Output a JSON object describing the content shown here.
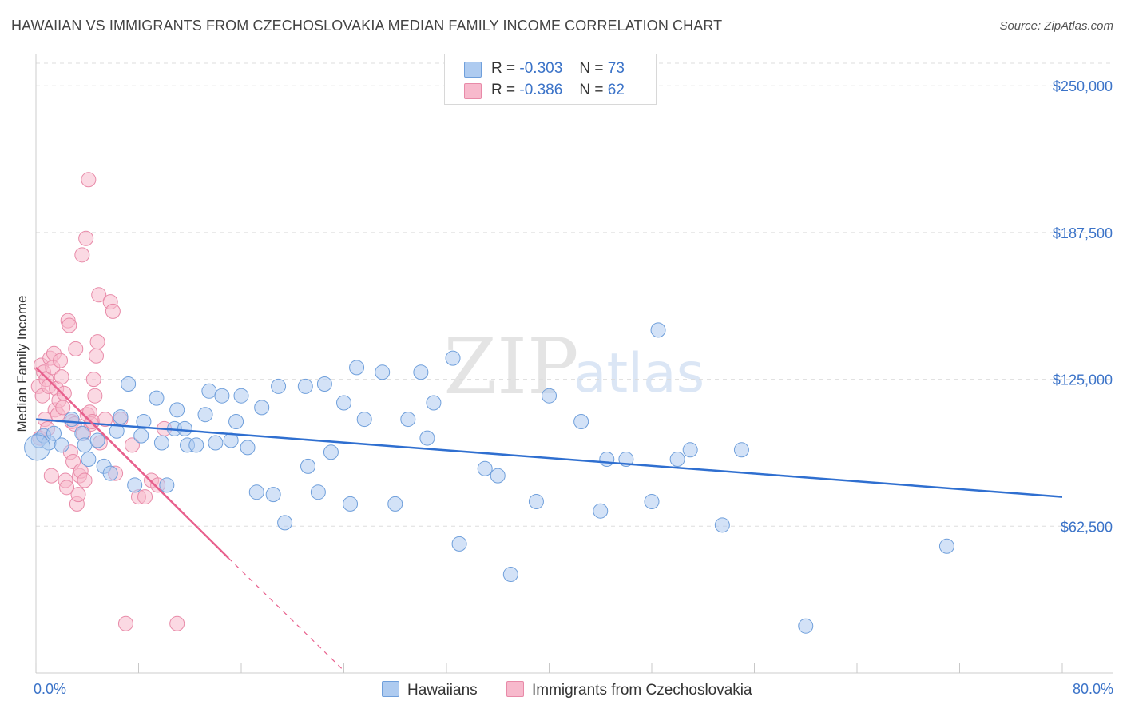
{
  "header": {
    "title": "HAWAIIAN VS IMMIGRANTS FROM CZECHOSLOVAKIA MEDIAN FAMILY INCOME CORRELATION CHART",
    "source": "Source: ZipAtlas.com"
  },
  "watermark": {
    "zip": "ZIP",
    "atlas": "atlas"
  },
  "legend_top": {
    "rows": [
      {
        "r_label": "R =",
        "r_value": "-0.303",
        "n_label": "N =",
        "n_value": "73"
      },
      {
        "r_label": "R =",
        "r_value": "-0.386",
        "n_label": "N =",
        "n_value": "62"
      }
    ]
  },
  "legend_bottom": {
    "series1": "Hawaiians",
    "series2": "Immigrants from Czechoslovakia"
  },
  "x_axis": {
    "min_label": "0.0%",
    "max_label": "80.0%"
  },
  "colors": {
    "blue_fill": "#aecbf0",
    "blue_stroke": "#6f9fdb",
    "blue_line": "#2f6fd0",
    "pink_fill": "#f7b9cc",
    "pink_stroke": "#e88aa8",
    "pink_line": "#e8608d",
    "axis_text": "#3b73c8",
    "grid": "#dddddd"
  },
  "chart_data": {
    "type": "scatter",
    "title": "HAWAIIAN VS IMMIGRANTS FROM CZECHOSLOVAKIA MEDIAN FAMILY INCOME CORRELATION CHART",
    "xlabel": "",
    "ylabel": "Median Family Income",
    "xlim": [
      0,
      80
    ],
    "ylim": [
      0,
      250000
    ],
    "y_ticks": [
      62500,
      125000,
      187500,
      250000
    ],
    "y_tick_labels": [
      "$62,500",
      "$125,000",
      "$187,500",
      "$250,000"
    ],
    "series": [
      {
        "name": "Hawaiians",
        "R": -0.303,
        "N": 73,
        "points": [
          [
            0.2,
            99000
          ],
          [
            0.6,
            101000
          ],
          [
            1.0,
            98000
          ],
          [
            1.4,
            102000
          ],
          [
            2.0,
            97000
          ],
          [
            2.8,
            108000
          ],
          [
            3.6,
            102000
          ],
          [
            3.8,
            97000
          ],
          [
            4.1,
            91000
          ],
          [
            4.8,
            99000
          ],
          [
            5.3,
            88000
          ],
          [
            5.8,
            85000
          ],
          [
            6.3,
            103000
          ],
          [
            6.6,
            109000
          ],
          [
            7.2,
            123000
          ],
          [
            7.7,
            80000
          ],
          [
            8.2,
            101000
          ],
          [
            8.4,
            107000
          ],
          [
            9.4,
            117000
          ],
          [
            9.8,
            98000
          ],
          [
            10.2,
            80000
          ],
          [
            10.8,
            104000
          ],
          [
            11.0,
            112000
          ],
          [
            11.6,
            104000
          ],
          [
            11.8,
            97000
          ],
          [
            12.5,
            97000
          ],
          [
            13.2,
            110000
          ],
          [
            13.5,
            120000
          ],
          [
            14.0,
            98000
          ],
          [
            14.5,
            118000
          ],
          [
            15.2,
            99000
          ],
          [
            15.6,
            107000
          ],
          [
            16.0,
            118000
          ],
          [
            16.5,
            96000
          ],
          [
            17.2,
            77000
          ],
          [
            17.6,
            113000
          ],
          [
            18.5,
            76000
          ],
          [
            18.9,
            122000
          ],
          [
            19.4,
            64000
          ],
          [
            21.0,
            122000
          ],
          [
            21.2,
            88000
          ],
          [
            22.0,
            77000
          ],
          [
            22.5,
            123000
          ],
          [
            23.0,
            94000
          ],
          [
            24.0,
            115000
          ],
          [
            24.5,
            72000
          ],
          [
            25.0,
            130000
          ],
          [
            25.6,
            108000
          ],
          [
            27.0,
            128000
          ],
          [
            28.0,
            72000
          ],
          [
            29.0,
            108000
          ],
          [
            30.0,
            128000
          ],
          [
            30.5,
            100000
          ],
          [
            31.0,
            115000
          ],
          [
            32.5,
            134000
          ],
          [
            33.0,
            55000
          ],
          [
            35.0,
            87000
          ],
          [
            36.0,
            84000
          ],
          [
            37.0,
            42000
          ],
          [
            39.0,
            73000
          ],
          [
            40.0,
            118000
          ],
          [
            42.5,
            107000
          ],
          [
            44.0,
            69000
          ],
          [
            44.5,
            91000
          ],
          [
            46.0,
            91000
          ],
          [
            48.0,
            73000
          ],
          [
            48.5,
            146000
          ],
          [
            50.0,
            91000
          ],
          [
            51.0,
            95000
          ],
          [
            53.5,
            63000
          ],
          [
            55.0,
            95000
          ],
          [
            60.0,
            20000
          ],
          [
            71.0,
            54000
          ]
        ],
        "trend": {
          "x": [
            0,
            80
          ],
          "y": [
            108000,
            75000
          ]
        }
      },
      {
        "name": "Immigrants from Czechoslovakia",
        "R": -0.386,
        "N": 62,
        "points": [
          [
            0.2,
            122000
          ],
          [
            0.3,
            100000
          ],
          [
            0.4,
            131000
          ],
          [
            0.5,
            118000
          ],
          [
            0.6,
            128000
          ],
          [
            0.7,
            108000
          ],
          [
            0.8,
            125000
          ],
          [
            0.9,
            104000
          ],
          [
            1.0,
            122000
          ],
          [
            1.1,
            134000
          ],
          [
            1.2,
            84000
          ],
          [
            1.3,
            130000
          ],
          [
            1.4,
            136000
          ],
          [
            1.5,
            112000
          ],
          [
            1.6,
            121000
          ],
          [
            1.7,
            110000
          ],
          [
            1.8,
            116000
          ],
          [
            1.9,
            133000
          ],
          [
            2.0,
            126000
          ],
          [
            2.1,
            113000
          ],
          [
            2.2,
            119000
          ],
          [
            2.3,
            82000
          ],
          [
            2.4,
            79000
          ],
          [
            2.5,
            150000
          ],
          [
            2.6,
            148000
          ],
          [
            2.7,
            94000
          ],
          [
            2.8,
            107000
          ],
          [
            2.9,
            90000
          ],
          [
            3.0,
            106000
          ],
          [
            3.1,
            138000
          ],
          [
            3.2,
            72000
          ],
          [
            3.3,
            76000
          ],
          [
            3.4,
            84000
          ],
          [
            3.5,
            86000
          ],
          [
            3.6,
            178000
          ],
          [
            3.7,
            102000
          ],
          [
            3.8,
            82000
          ],
          [
            3.9,
            185000
          ],
          [
            4.0,
            110000
          ],
          [
            4.1,
            210000
          ],
          [
            4.2,
            111000
          ],
          [
            4.3,
            106000
          ],
          [
            4.4,
            107000
          ],
          [
            4.5,
            125000
          ],
          [
            4.6,
            118000
          ],
          [
            4.7,
            135000
          ],
          [
            4.8,
            141000
          ],
          [
            4.9,
            161000
          ],
          [
            5.0,
            98000
          ],
          [
            5.4,
            108000
          ],
          [
            5.8,
            158000
          ],
          [
            6.0,
            154000
          ],
          [
            6.2,
            85000
          ],
          [
            6.6,
            108000
          ],
          [
            7.0,
            21000
          ],
          [
            7.5,
            97000
          ],
          [
            8.0,
            75000
          ],
          [
            8.5,
            75000
          ],
          [
            9.0,
            82000
          ],
          [
            9.5,
            80000
          ],
          [
            10.0,
            104000
          ],
          [
            11.0,
            21000
          ]
        ],
        "trend": {
          "x": [
            0,
            15
          ],
          "y": [
            130000,
            49000
          ]
        },
        "trend_extension": {
          "x": [
            15,
            24
          ],
          "y": [
            49000,
            1000
          ]
        }
      }
    ]
  }
}
